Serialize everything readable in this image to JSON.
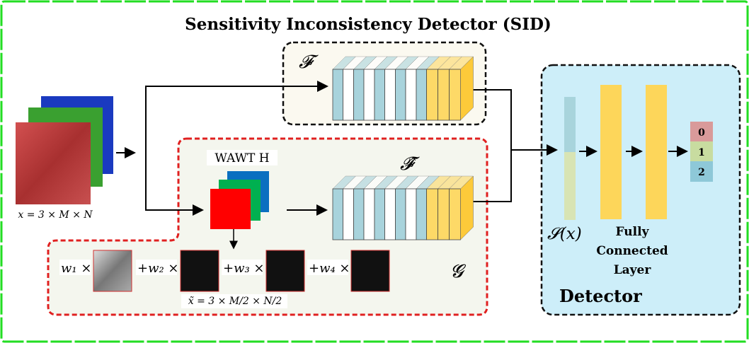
{
  "title": "Sensitivity Inconsistency Detector (SID)",
  "input_label": "x = 3 × M × N",
  "wawt_label": "WAWT H",
  "F_label": "𝓕",
  "F_hat_label": "𝓕̂",
  "G_label": "𝓖",
  "subband_label": "x̃ = 3 × M/2 × N/2",
  "weights": [
    "w₁ ×",
    "+w₂ ×",
    "+w₃ ×",
    "+w₄ ×"
  ],
  "S_label": "𝓢(x)",
  "fc_label": [
    "Fully",
    "Connected",
    "Layer"
  ],
  "detector_label": "Detector",
  "outputs": [
    "0",
    "1",
    "2"
  ],
  "colors": {
    "border": "#22dd22",
    "detector_bg": "#cdeef9",
    "G_border": "#e02020",
    "stripe_blue": "#a8d3dc",
    "stripe_yellow": "#fdd967",
    "fc": "#fdd65a",
    "out0": "#d99a9a",
    "out1": "#c8dca0",
    "out2": "#8ec8d8"
  }
}
